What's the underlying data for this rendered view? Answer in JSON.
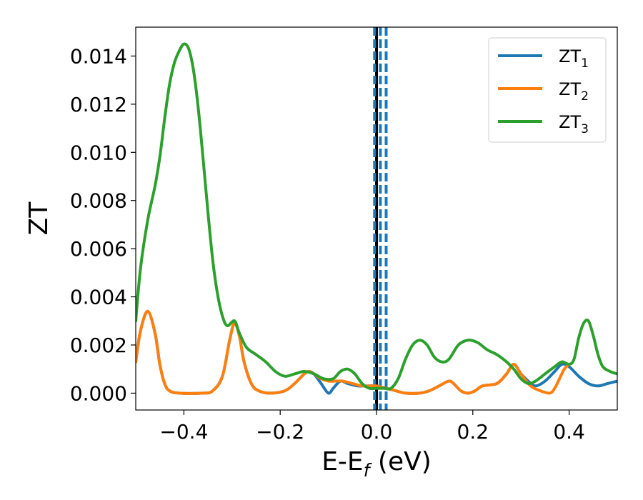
{
  "chart_data": {
    "type": "line",
    "xlabel": "E-E",
    "xlabel_sub": "f",
    "xlabel_unit": " (eV)",
    "ylabel": "ZT",
    "xlim": [
      -0.5,
      0.5
    ],
    "ylim": [
      -0.0007,
      0.0152
    ],
    "x_ticks": [
      -0.4,
      -0.2,
      0.0,
      0.2,
      0.4
    ],
    "x_tick_labels": [
      "−0.4",
      "−0.2",
      "0.0",
      "0.2",
      "0.4"
    ],
    "y_ticks": [
      0.0,
      0.002,
      0.004,
      0.006,
      0.008,
      0.01,
      0.012,
      0.014
    ],
    "y_tick_labels": [
      "0.000",
      "0.002",
      "0.004",
      "0.006",
      "0.008",
      "0.010",
      "0.012",
      "0.014"
    ],
    "grid": false,
    "legend_position": "top-right",
    "vlines": [
      {
        "x": 0.0,
        "color": "#000000",
        "style": "solid"
      },
      {
        "x": -0.004,
        "color": "#1f77b4",
        "style": "dashed"
      },
      {
        "x": 0.008,
        "color": "#1f77b4",
        "style": "dashed"
      },
      {
        "x": 0.02,
        "color": "#1f77b4",
        "style": "dashed"
      }
    ],
    "series": [
      {
        "name": "ZT",
        "name_sub": "1",
        "color": "#1f77b4",
        "points": [
          [
            -0.5,
            0.0013
          ],
          [
            -0.49,
            0.0026
          ],
          [
            -0.475,
            0.0034
          ],
          [
            -0.46,
            0.0025
          ],
          [
            -0.45,
            0.0012
          ],
          [
            -0.44,
            0.0004
          ],
          [
            -0.43,
            0.0001
          ],
          [
            -0.41,
            0.0
          ],
          [
            -0.36,
            0.0
          ],
          [
            -0.34,
            0.0001
          ],
          [
            -0.32,
            0.0007
          ],
          [
            -0.305,
            0.0022
          ],
          [
            -0.295,
            0.0029
          ],
          [
            -0.285,
            0.0024
          ],
          [
            -0.275,
            0.0013
          ],
          [
            -0.26,
            0.0004
          ],
          [
            -0.245,
            0.0001
          ],
          [
            -0.22,
            0.0
          ],
          [
            -0.19,
            0.0001
          ],
          [
            -0.17,
            0.0004
          ],
          [
            -0.15,
            0.0008
          ],
          [
            -0.14,
            0.0009
          ],
          [
            -0.13,
            0.0008
          ],
          [
            -0.115,
            0.0004
          ],
          [
            -0.1,
            0.0
          ],
          [
            -0.09,
            0.0002
          ],
          [
            -0.075,
            0.0005
          ],
          [
            -0.06,
            0.0004
          ],
          [
            -0.04,
            0.0003
          ],
          [
            -0.02,
            0.0003
          ],
          [
            0.0,
            0.0003
          ],
          [
            0.02,
            0.0002
          ],
          [
            0.04,
            0.0001
          ],
          [
            0.06,
            0.0
          ],
          [
            0.09,
            0.0
          ],
          [
            0.11,
            0.0001
          ],
          [
            0.13,
            0.0003
          ],
          [
            0.15,
            0.0005
          ],
          [
            0.16,
            0.0004
          ],
          [
            0.175,
            0.0001
          ],
          [
            0.19,
            0.0
          ],
          [
            0.205,
            0.0001
          ],
          [
            0.22,
            0.0003
          ],
          [
            0.25,
            0.0004
          ],
          [
            0.27,
            0.0008
          ],
          [
            0.285,
            0.0012
          ],
          [
            0.3,
            0.0008
          ],
          [
            0.315,
            0.0005
          ],
          [
            0.33,
            0.0003
          ],
          [
            0.35,
            0.0005
          ],
          [
            0.37,
            0.0009
          ],
          [
            0.385,
            0.0012
          ],
          [
            0.4,
            0.0011
          ],
          [
            0.42,
            0.0007
          ],
          [
            0.44,
            0.0004
          ],
          [
            0.46,
            0.0003
          ],
          [
            0.48,
            0.0004
          ],
          [
            0.5,
            0.0005
          ]
        ]
      },
      {
        "name": "ZT",
        "name_sub": "2",
        "color": "#ff7f0e",
        "points": [
          [
            -0.5,
            0.0013
          ],
          [
            -0.49,
            0.0026
          ],
          [
            -0.475,
            0.0034
          ],
          [
            -0.46,
            0.0025
          ],
          [
            -0.45,
            0.0012
          ],
          [
            -0.44,
            0.0004
          ],
          [
            -0.43,
            0.0001
          ],
          [
            -0.41,
            0.0
          ],
          [
            -0.36,
            0.0
          ],
          [
            -0.34,
            0.0001
          ],
          [
            -0.32,
            0.0007
          ],
          [
            -0.305,
            0.0022
          ],
          [
            -0.295,
            0.0029
          ],
          [
            -0.285,
            0.0024
          ],
          [
            -0.275,
            0.0013
          ],
          [
            -0.26,
            0.0004
          ],
          [
            -0.245,
            0.0001
          ],
          [
            -0.22,
            0.0
          ],
          [
            -0.19,
            0.0001
          ],
          [
            -0.17,
            0.0004
          ],
          [
            -0.15,
            0.0008
          ],
          [
            -0.14,
            0.0009
          ],
          [
            -0.13,
            0.0008
          ],
          [
            -0.115,
            0.0006
          ],
          [
            -0.1,
            0.0005
          ],
          [
            -0.085,
            0.0005
          ],
          [
            -0.07,
            0.0005
          ],
          [
            -0.05,
            0.0004
          ],
          [
            -0.03,
            0.0003
          ],
          [
            -0.01,
            0.0003
          ],
          [
            0.0,
            0.0003
          ],
          [
            0.02,
            0.0002
          ],
          [
            0.04,
            0.0001
          ],
          [
            0.06,
            0.0
          ],
          [
            0.09,
            0.0
          ],
          [
            0.11,
            0.0001
          ],
          [
            0.13,
            0.0003
          ],
          [
            0.15,
            0.0005
          ],
          [
            0.16,
            0.0004
          ],
          [
            0.175,
            0.0001
          ],
          [
            0.19,
            0.0
          ],
          [
            0.205,
            0.0001
          ],
          [
            0.22,
            0.0003
          ],
          [
            0.25,
            0.0004
          ],
          [
            0.27,
            0.0008
          ],
          [
            0.285,
            0.0012
          ],
          [
            0.3,
            0.0008
          ],
          [
            0.32,
            0.0003
          ],
          [
            0.34,
            0.0001
          ],
          [
            0.36,
            0.0
          ],
          [
            0.37,
            0.0002
          ],
          [
            0.38,
            0.0006
          ],
          [
            0.39,
            0.001
          ],
          [
            0.4,
            0.0012
          ]
        ]
      },
      {
        "name": "ZT",
        "name_sub": "3",
        "color": "#2ca02c",
        "points": [
          [
            -0.5,
            0.003
          ],
          [
            -0.49,
            0.0052
          ],
          [
            -0.475,
            0.0072
          ],
          [
            -0.46,
            0.0086
          ],
          [
            -0.45,
            0.0098
          ],
          [
            -0.44,
            0.0114
          ],
          [
            -0.43,
            0.0128
          ],
          [
            -0.42,
            0.0137
          ],
          [
            -0.41,
            0.0142
          ],
          [
            -0.4,
            0.0145
          ],
          [
            -0.39,
            0.0143
          ],
          [
            -0.38,
            0.0134
          ],
          [
            -0.37,
            0.0118
          ],
          [
            -0.36,
            0.0097
          ],
          [
            -0.35,
            0.0075
          ],
          [
            -0.34,
            0.0055
          ],
          [
            -0.33,
            0.0041
          ],
          [
            -0.32,
            0.0032
          ],
          [
            -0.31,
            0.0028
          ],
          [
            -0.295,
            0.003
          ],
          [
            -0.285,
            0.0025
          ],
          [
            -0.27,
            0.0019
          ],
          [
            -0.25,
            0.0016
          ],
          [
            -0.23,
            0.0013
          ],
          [
            -0.21,
            0.0009
          ],
          [
            -0.19,
            0.0007
          ],
          [
            -0.17,
            0.0008
          ],
          [
            -0.15,
            0.0009
          ],
          [
            -0.13,
            0.0008
          ],
          [
            -0.11,
            0.0006
          ],
          [
            -0.09,
            0.0006
          ],
          [
            -0.075,
            0.0009
          ],
          [
            -0.06,
            0.001
          ],
          [
            -0.045,
            0.0008
          ],
          [
            -0.03,
            0.0004
          ],
          [
            -0.015,
            0.0002
          ],
          [
            0.0,
            0.0002
          ],
          [
            0.015,
            0.0002
          ],
          [
            0.03,
            0.0002
          ],
          [
            0.045,
            0.0006
          ],
          [
            0.06,
            0.0014
          ],
          [
            0.075,
            0.002
          ],
          [
            0.09,
            0.0022
          ],
          [
            0.105,
            0.002
          ],
          [
            0.12,
            0.0015
          ],
          [
            0.135,
            0.0013
          ],
          [
            0.15,
            0.0014
          ],
          [
            0.17,
            0.002
          ],
          [
            0.19,
            0.0022
          ],
          [
            0.21,
            0.0021
          ],
          [
            0.23,
            0.0018
          ],
          [
            0.25,
            0.0016
          ],
          [
            0.27,
            0.0013
          ],
          [
            0.285,
            0.001
          ],
          [
            0.3,
            0.0006
          ],
          [
            0.315,
            0.0004
          ],
          [
            0.33,
            0.0005
          ],
          [
            0.35,
            0.0008
          ],
          [
            0.37,
            0.0011
          ],
          [
            0.385,
            0.0013
          ],
          [
            0.4,
            0.0012
          ],
          [
            0.41,
            0.0014
          ],
          [
            0.42,
            0.0023
          ],
          [
            0.43,
            0.0029
          ],
          [
            0.44,
            0.003
          ],
          [
            0.45,
            0.0024
          ],
          [
            0.46,
            0.0016
          ],
          [
            0.47,
            0.0011
          ],
          [
            0.485,
            0.0009
          ],
          [
            0.5,
            0.0008
          ]
        ]
      }
    ]
  }
}
